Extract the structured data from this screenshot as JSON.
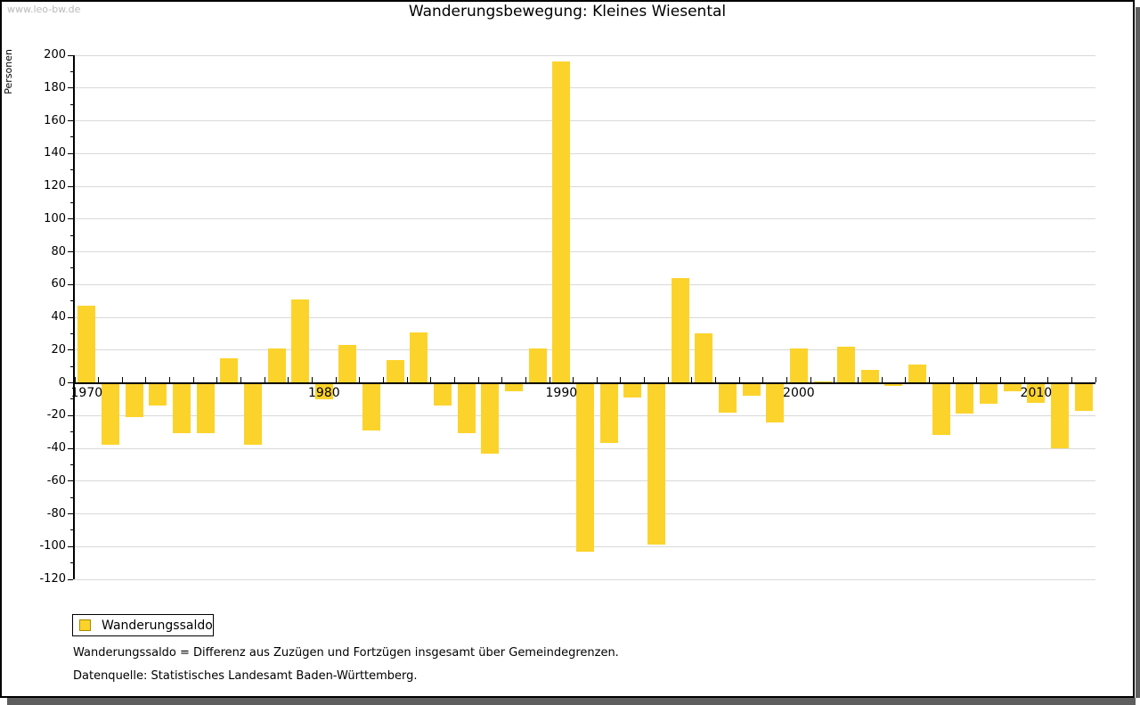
{
  "page": {
    "watermark": "www.leo-bw.de",
    "title": "Wanderungsbewegung: Kleines Wiesental"
  },
  "chart_data": {
    "type": "bar",
    "title": "Wanderungsbewegung: Kleines Wiesental",
    "ylabel": "Personen",
    "ylim": [
      -120,
      200
    ],
    "ytick_step": 20,
    "ytick_minor_step": 10,
    "grid": true,
    "legend_position": "bottom-left",
    "series_name": "Wanderungssaldo",
    "bar_color": "#fcd32b",
    "x_labeled_years": [
      "1970",
      "1980",
      "1990",
      "2000",
      "2010"
    ],
    "years": [
      1970,
      1971,
      1972,
      1973,
      1974,
      1975,
      1976,
      1977,
      1978,
      1979,
      1980,
      1981,
      1982,
      1983,
      1984,
      1985,
      1986,
      1987,
      1988,
      1989,
      1990,
      1991,
      1992,
      1993,
      1994,
      1995,
      1996,
      1997,
      1998,
      1999,
      2000,
      2001,
      2002,
      2003,
      2004,
      2005,
      2006,
      2007,
      2008,
      2009,
      2010,
      2011,
      2012
    ],
    "values": [
      47,
      -38,
      -21,
      -14,
      -31,
      -31,
      15,
      -38,
      21,
      51,
      -10,
      23,
      -29,
      14,
      31,
      -14,
      -31,
      -43,
      -5,
      21,
      196,
      -103,
      -37,
      -9,
      -99,
      64,
      30,
      -18,
      -8,
      -24,
      21,
      1,
      22,
      8,
      -2,
      11,
      -32,
      -19,
      -13,
      -5,
      -12,
      -40,
      -17
    ]
  },
  "legend": {
    "label": "Wanderungssaldo"
  },
  "footnotes": {
    "line1": "Wanderungssaldo = Differenz aus Zuzügen und Fortzügen insgesamt über Gemeindegrenzen.",
    "line2": "Datenquelle: Statistisches Landesamt Baden-Württemberg."
  }
}
